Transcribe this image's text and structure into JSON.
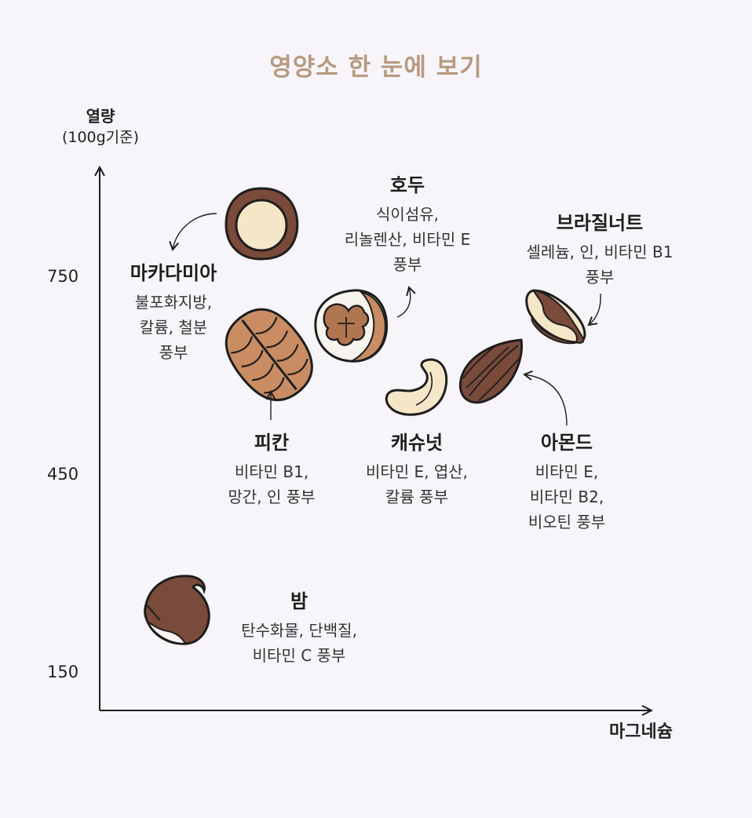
{
  "title": "영양소 한 눈에 보기",
  "axes": {
    "y_label": "열량",
    "y_sub": "(100g기준)",
    "x_label": "마그네슘",
    "y_ticks": [
      "750",
      "450",
      "150"
    ]
  },
  "nuts": [
    {
      "id": "macadamia",
      "name": "마카다미아",
      "desc": "불포화지방,\n칼륨, 철분\n풍부",
      "icon": "macadamia-icon"
    },
    {
      "id": "walnut",
      "name": "호두",
      "desc": "식이섬유,\n리놀렌산, 비타민 E\n풍부",
      "icon": "walnut-icon"
    },
    {
      "id": "brazil",
      "name": "브라질너트",
      "desc": "셀레늄, 인, 비타민 B1\n풍부",
      "icon": "brazil-nut-icon"
    },
    {
      "id": "pecan",
      "name": "피칸",
      "desc": "비타민 B1,\n망간, 인 풍부",
      "icon": "pecan-icon"
    },
    {
      "id": "cashew",
      "name": "캐슈넛",
      "desc": "비타민 E, 엽산,\n칼륨 풍부",
      "icon": "cashew-icon"
    },
    {
      "id": "almond",
      "name": "아몬드",
      "desc": "비타민 E,\n비타민 B2,\n비오틴 풍부",
      "icon": "almond-icon"
    },
    {
      "id": "chestnut",
      "name": "밤",
      "desc": "탄수화물, 단백질,\n비타민 C 풍부",
      "icon": "chestnut-icon"
    }
  ],
  "colors": {
    "title": "#b79a80",
    "shell_dark": "#7a4a3a",
    "kernel": "#f5e6c8",
    "outline": "#1e1e1e"
  }
}
